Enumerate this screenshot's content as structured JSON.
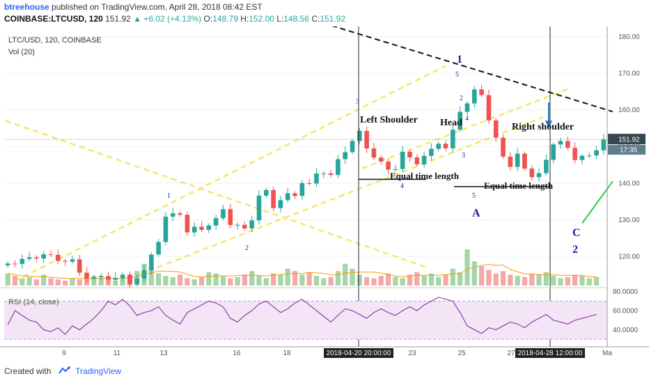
{
  "header": {
    "user": "btreehouse",
    "published": "published on TradingView.com, April 28, 2018 08:42 EST",
    "symbol": "COINBASE:LTCUSD, 120",
    "last": "151.92",
    "change_icon": "triangle-up",
    "change": "+6.02 (+4.13%)",
    "o_label": "O:",
    "o": "148.79",
    "h_label": "H:",
    "h": "152.00",
    "l_label": "L:",
    "l": "148.56",
    "c_label": "C:",
    "c": "151.92"
  },
  "pane": {
    "title": "LTC/USD, 120, COINBASE",
    "vol_label": "Vol (20)",
    "rsi_label": "RSI (14, close)"
  },
  "footer": {
    "created_with": "Created with",
    "brand": "TradingView"
  },
  "chart_data": {
    "type": "candlestick",
    "symbol": "LTC/USD",
    "interval": "120",
    "exchange": "COINBASE",
    "price_ylim": [
      112,
      182
    ],
    "price_ticks": [
      "180.00",
      "170.00",
      "160.00",
      "150.00",
      "140.00",
      "130.00",
      "120.00"
    ],
    "price_tick_values": [
      180,
      170,
      160,
      150,
      140,
      130,
      120
    ],
    "last_price_tag": "151.92",
    "countdown_tag": "17:35",
    "rsi_ylim": [
      25,
      82
    ],
    "rsi_ticks": [
      "80.0000",
      "60.0000",
      "40.0000"
    ],
    "rsi_tick_values": [
      80,
      60,
      40
    ],
    "x_ticks": [
      "9",
      "11",
      "13",
      "16",
      "18",
      "23",
      "25",
      "27",
      "Ma"
    ],
    "x_cursor_labels": [
      "2018-04-20 20:00:00",
      "2018-04-28 12:00:00"
    ],
    "close_path": [
      [
        0,
        118
      ],
      [
        3,
        119
      ],
      [
        5,
        120
      ],
      [
        7,
        118.5
      ],
      [
        9,
        118
      ],
      [
        10,
        115
      ],
      [
        11,
        114
      ],
      [
        12,
        113.5
      ],
      [
        13,
        114
      ],
      [
        15,
        114
      ],
      [
        16,
        114.5
      ],
      [
        17,
        113
      ],
      [
        19,
        116
      ],
      [
        20,
        121
      ],
      [
        21,
        125
      ],
      [
        22,
        131
      ],
      [
        23,
        132
      ],
      [
        24,
        132.5
      ],
      [
        25,
        127
      ],
      [
        26,
        128
      ],
      [
        27,
        128
      ],
      [
        28,
        129
      ],
      [
        29,
        130
      ],
      [
        30,
        133
      ],
      [
        31,
        129
      ],
      [
        32,
        128
      ],
      [
        33,
        127
      ],
      [
        34,
        130
      ],
      [
        35,
        136
      ],
      [
        36,
        137
      ],
      [
        37,
        133
      ],
      [
        38,
        135
      ],
      [
        39,
        136
      ],
      [
        40,
        136
      ],
      [
        41,
        140
      ],
      [
        42,
        139
      ],
      [
        43,
        142
      ],
      [
        44,
        143
      ],
      [
        45,
        142
      ],
      [
        46,
        146
      ],
      [
        47,
        149
      ],
      [
        48,
        152
      ],
      [
        49,
        154
      ],
      [
        50,
        150
      ],
      [
        51,
        148
      ],
      [
        52,
        146
      ],
      [
        53,
        144
      ],
      [
        54,
        145
      ],
      [
        55,
        149
      ],
      [
        56,
        147
      ],
      [
        57,
        146
      ],
      [
        58,
        148
      ],
      [
        59,
        149
      ],
      [
        60,
        151
      ],
      [
        61,
        150
      ],
      [
        62,
        154
      ],
      [
        63,
        159
      ],
      [
        64,
        162
      ],
      [
        65,
        165
      ],
      [
        66,
        163
      ],
      [
        67,
        157
      ],
      [
        68,
        152
      ],
      [
        69,
        146
      ],
      [
        70,
        144
      ],
      [
        71,
        148
      ],
      [
        72,
        143
      ],
      [
        73,
        141
      ],
      [
        74,
        143
      ],
      [
        75,
        146
      ],
      [
        76,
        150
      ],
      [
        77,
        152
      ],
      [
        78,
        150
      ],
      [
        79,
        146
      ],
      [
        80,
        148
      ],
      [
        81,
        148.5
      ],
      [
        82,
        149
      ],
      [
        83,
        151.92
      ]
    ],
    "volume": [
      10,
      8,
      6,
      7,
      5,
      9,
      6,
      5,
      4,
      6,
      5,
      7,
      8,
      6,
      5,
      4,
      6,
      9,
      12,
      18,
      15,
      10,
      8,
      7,
      9,
      6,
      5,
      7,
      11,
      10,
      8,
      6,
      7,
      9,
      12,
      8,
      6,
      10,
      9,
      14,
      12,
      9,
      11,
      8,
      6,
      7,
      12,
      18,
      14,
      9,
      7,
      6,
      8,
      10,
      7,
      6,
      9,
      11,
      8,
      10,
      7,
      9,
      14,
      11,
      30,
      20,
      16,
      13,
      10,
      12,
      9,
      8,
      7,
      10,
      9,
      11,
      8,
      6,
      7,
      9,
      8,
      6,
      7
    ],
    "rsi": [
      45,
      60,
      55,
      50,
      48,
      40,
      38,
      42,
      35,
      44,
      40,
      46,
      52,
      60,
      70,
      66,
      72,
      65,
      55,
      58,
      60,
      64,
      55,
      50,
      46,
      58,
      62,
      66,
      70,
      68,
      64,
      52,
      48,
      55,
      60,
      67,
      70,
      64,
      58,
      62,
      68,
      72,
      66,
      60,
      54,
      48,
      55,
      62,
      60,
      56,
      52,
      58,
      62,
      58,
      55,
      60,
      64,
      60,
      66,
      70,
      74,
      72,
      70,
      58,
      44,
      40,
      36,
      42,
      40,
      44,
      48,
      46,
      42,
      48,
      52,
      56,
      50,
      48,
      46,
      50,
      52,
      54,
      56
    ],
    "annotations": [
      {
        "text": "Left Shoulder"
      },
      {
        "text": "Head"
      },
      {
        "text": "Right shoulder"
      },
      {
        "text": "Equal time length"
      },
      {
        "text": "Equal time length"
      },
      {
        "text": "1"
      },
      {
        "text": "5"
      },
      {
        "text": "3"
      },
      {
        "text": "2"
      },
      {
        "text": "4"
      },
      {
        "text": "3"
      },
      {
        "text": "4"
      },
      {
        "text": "5"
      },
      {
        "text": "1"
      },
      {
        "text": "2"
      },
      {
        "text": "A"
      },
      {
        "text": "C"
      },
      {
        "text": "2"
      }
    ],
    "colors": {
      "up": "#26a69a",
      "down": "#ef5350",
      "volume_up": "#a5d6a7",
      "volume_down": "#f4a8a8",
      "ma": "#ff9800",
      "rsi_line": "#7b1fa2",
      "rsi_band": "#f3e5f5",
      "trend_yellow": "#f5e663",
      "trend_black": "#111111",
      "wave_label": "#1a1aa6",
      "green_line": "#2ecc40",
      "arrow_blue": "#1f6fbf",
      "price_tag": "#37474f"
    }
  }
}
